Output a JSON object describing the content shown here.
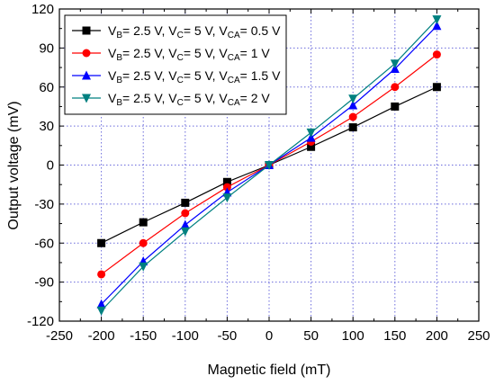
{
  "chart_data": {
    "type": "line",
    "title": "",
    "xlabel": "Magnetic field (mT)",
    "ylabel": "Output voltage (mV)",
    "xlim": [
      -250,
      250
    ],
    "ylim": [
      -120,
      120
    ],
    "xticks": [
      -250,
      -200,
      -150,
      -100,
      -50,
      0,
      50,
      100,
      150,
      200,
      250
    ],
    "yticks": [
      -120,
      -90,
      -60,
      -30,
      0,
      30,
      60,
      90,
      120
    ],
    "grid": true,
    "legend_position": "top-left",
    "x": [
      -200,
      -150,
      -100,
      -50,
      0,
      50,
      100,
      150,
      200
    ],
    "series": [
      {
        "name": "VB= 2.5 V, VC= 5 V, VCA= 0.5 V",
        "name_parts": {
          "p1": "V",
          "s1": "B",
          "p2": "= 2.5 V, V",
          "s2": "C",
          "p3": "= 5 V, V",
          "s3": "CA",
          "p4": "= 0.5 V"
        },
        "color": "#000000",
        "marker": "square",
        "values": [
          -60,
          -44,
          -29,
          -13,
          0,
          14,
          29,
          45,
          60
        ]
      },
      {
        "name": "VB= 2.5 V, VC= 5 V, VCA= 1 V",
        "name_parts": {
          "p1": "V",
          "s1": "B",
          "p2": "= 2.5 V, V",
          "s2": "C",
          "p3": "= 5 V, V",
          "s3": "CA",
          "p4": "= 1 V"
        },
        "color": "#ff0000",
        "marker": "circle",
        "values": [
          -84,
          -60,
          -37,
          -17,
          0,
          18,
          37,
          60,
          85
        ]
      },
      {
        "name": "VB= 2.5 V, VC= 5 V, VCA= 1.5 V",
        "name_parts": {
          "p1": "V",
          "s1": "B",
          "p2": "= 2.5 V, V",
          "s2": "C",
          "p3": "= 5 V, V",
          "s3": "CA",
          "p4": "= 1.5 V"
        },
        "color": "#0000ff",
        "marker": "triangle-up",
        "values": [
          -107,
          -74,
          -46,
          -21,
          0,
          21,
          46,
          74,
          107
        ]
      },
      {
        "name": "VB= 2.5 V, VC= 5 V, VCA= 2 V",
        "name_parts": {
          "p1": "V",
          "s1": "B",
          "p2": "= 2.5 V, V",
          "s2": "C",
          "p3": "= 5 V, V",
          "s3": "CA",
          "p4": "= 2 V"
        },
        "color": "#008080",
        "marker": "triangle-down",
        "values": [
          -112,
          -78,
          -51,
          -25,
          0,
          25,
          51,
          78,
          112
        ]
      }
    ]
  }
}
